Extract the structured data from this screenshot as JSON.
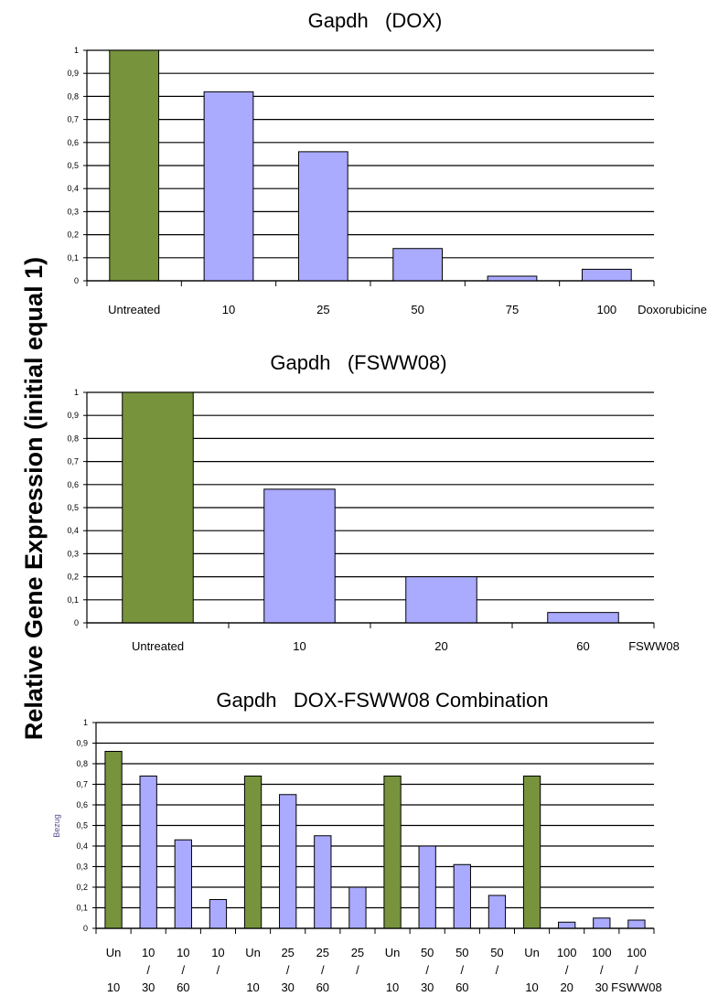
{
  "figure": {
    "shared_ylabel": "Relative Gene Expression (initial equal 1)",
    "colors": {
      "control": "#77933c",
      "treated": "#aaaaff",
      "bar_stroke": "#000000",
      "grid": "#000000"
    }
  },
  "chart_data": [
    {
      "type": "bar",
      "title": "Gapdh   (DOX)",
      "xlabel": "Doxorubicine",
      "ylabel": "",
      "ylim": [
        0,
        1
      ],
      "yticks": [
        "0",
        "0,1",
        "0,2",
        "0,3",
        "0,4",
        "0,5",
        "0,6",
        "0,7",
        "0,8",
        "0,9",
        "1"
      ],
      "grid": true,
      "categories": [
        [
          "Untreated"
        ],
        [
          "10"
        ],
        [
          "25"
        ],
        [
          "50"
        ],
        [
          "75"
        ],
        [
          "100"
        ]
      ],
      "values": [
        1.0,
        0.82,
        0.56,
        0.14,
        0.02,
        0.05
      ],
      "control": [
        true,
        false,
        false,
        false,
        false,
        false
      ]
    },
    {
      "type": "bar",
      "title": "Gapdh   (FSWW08)",
      "xlabel": "FSWW08",
      "ylabel": "",
      "ylim": [
        0,
        1
      ],
      "yticks": [
        "0",
        "0,1",
        "0,2",
        "0,3",
        "0,4",
        "0,5",
        "0,6",
        "0,7",
        "0,8",
        "0,9",
        "1"
      ],
      "grid": true,
      "categories": [
        [
          "Untreated"
        ],
        [
          "10"
        ],
        [
          "20"
        ],
        [
          "60"
        ]
      ],
      "values": [
        1.0,
        0.58,
        0.2,
        0.045
      ],
      "control": [
        true,
        false,
        false,
        false
      ]
    },
    {
      "type": "bar",
      "title": "Gapdh   DOX-FSWW08 Combination",
      "xlabel": "",
      "ylabel": "Bezug",
      "ylim": [
        0,
        1
      ],
      "yticks": [
        "0",
        "0,1",
        "0,2",
        "0,3",
        "0,4",
        "0,5",
        "0,6",
        "0,7",
        "0,8",
        "0,9",
        "1"
      ],
      "grid": true,
      "categories": [
        [
          "Un",
          "",
          "10"
        ],
        [
          "10",
          "/",
          "30"
        ],
        [
          "10",
          "/",
          "60"
        ],
        [
          "10",
          "/",
          ""
        ],
        [
          "Un",
          "",
          "10"
        ],
        [
          "25",
          "/",
          "30"
        ],
        [
          "25",
          "/",
          "60"
        ],
        [
          "25",
          "/",
          ""
        ],
        [
          "Un",
          "",
          "10"
        ],
        [
          "50",
          "/",
          "30"
        ],
        [
          "50",
          "/",
          "60"
        ],
        [
          "50",
          "/",
          ""
        ],
        [
          "Un",
          "",
          "10"
        ],
        [
          "100",
          "/",
          "20"
        ],
        [
          "100",
          "/",
          "30"
        ],
        [
          "100",
          "/",
          "FSWW08"
        ]
      ],
      "values": [
        0.86,
        0.74,
        0.43,
        0.14,
        0.74,
        0.65,
        0.45,
        0.2,
        0.74,
        0.4,
        0.31,
        0.16,
        0.74,
        0.03,
        0.05,
        0.04
      ],
      "control": [
        true,
        false,
        false,
        false,
        true,
        false,
        false,
        false,
        true,
        false,
        false,
        false,
        true,
        false,
        false,
        false
      ]
    }
  ]
}
